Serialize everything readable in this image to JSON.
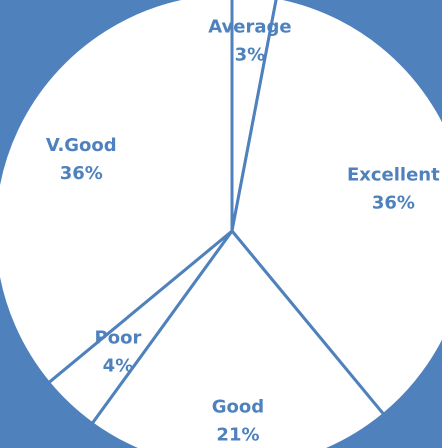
{
  "chart_data": {
    "type": "pie",
    "categories": [
      "Average",
      "Excellent",
      "Good",
      "Poor",
      "V.Good"
    ],
    "values": [
      3,
      36,
      21,
      4,
      36
    ],
    "value_labels": [
      "3%",
      "36%",
      "21%",
      "4%",
      "36%"
    ],
    "color": "#ffffff",
    "edge_color": "#4f81bd"
  }
}
